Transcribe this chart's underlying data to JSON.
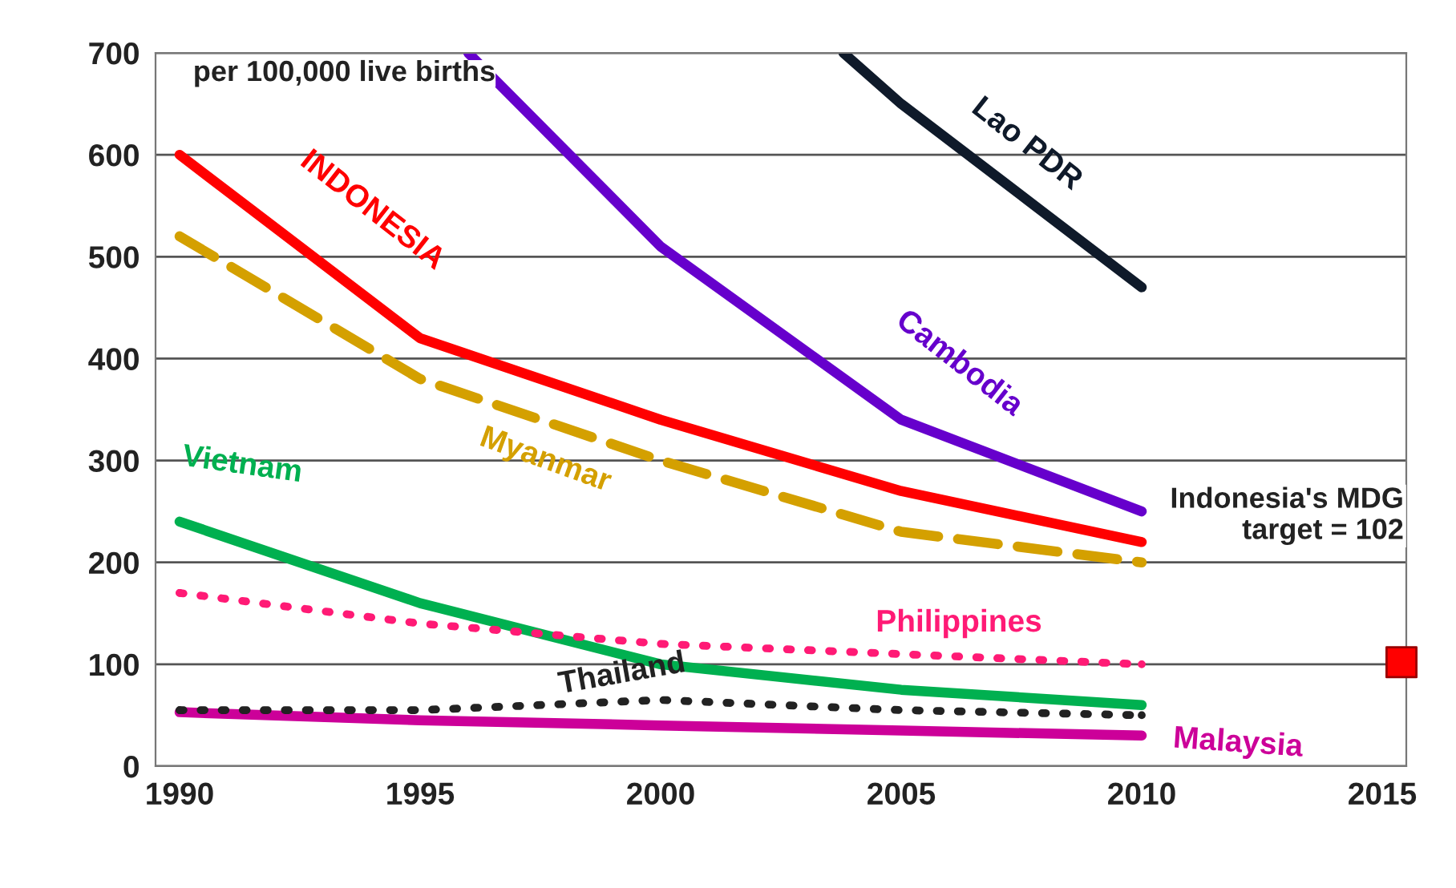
{
  "chart_data": {
    "type": "line",
    "xlim": [
      1989.5,
      2015.5
    ],
    "xticks": [
      1990,
      1995,
      2000,
      2005,
      2010,
      2015
    ],
    "ylim": [
      0,
      700
    ],
    "yticks": [
      0,
      100,
      200,
      300,
      400,
      500,
      600,
      700
    ],
    "grid": "y",
    "legend": false,
    "series": [
      {
        "name": "Lao PDR",
        "color": "#0f1a2a",
        "x": [
          2003.8,
          2005,
          2010
        ],
        "values": [
          700,
          650,
          470
        ],
        "line_style": "solid"
      },
      {
        "name": "Cambodia",
        "color": "#6600cc",
        "x": [
          1996,
          2000,
          2005,
          2010
        ],
        "values": [
          700,
          510,
          340,
          250
        ],
        "line_style": "solid"
      },
      {
        "name": "INDONESIA",
        "color": "#ff0000",
        "x": [
          1990,
          1995,
          2000,
          2005,
          2010
        ],
        "values": [
          600,
          420,
          340,
          270,
          220
        ],
        "line_style": "solid"
      },
      {
        "name": "Myanmar",
        "color": "#d4a000",
        "x": [
          1990,
          1995,
          2000,
          2005,
          2010
        ],
        "values": [
          520,
          380,
          300,
          230,
          200
        ],
        "line_style": "dashed"
      },
      {
        "name": "Vietnam",
        "color": "#00b050",
        "x": [
          1990,
          1995,
          2000,
          2005,
          2010
        ],
        "values": [
          240,
          160,
          100,
          75,
          60
        ],
        "line_style": "solid"
      },
      {
        "name": "Philippines",
        "color": "#ff1a75",
        "x": [
          1990,
          1995,
          2000,
          2005,
          2010
        ],
        "values": [
          170,
          140,
          120,
          110,
          100
        ],
        "line_style": "dotted"
      },
      {
        "name": "Thailand",
        "color": "#222222",
        "x": [
          1990,
          1995,
          2000,
          2005,
          2010
        ],
        "values": [
          55,
          55,
          65,
          55,
          50
        ],
        "line_style": "dotted"
      },
      {
        "name": "Malaysia",
        "color": "#cc0099",
        "x": [
          1990,
          1995,
          2000,
          2005,
          2010
        ],
        "values": [
          53,
          45,
          40,
          35,
          30
        ],
        "line_style": "solid"
      },
      {
        "type": "scatter",
        "marker": "square",
        "color": "#ff0000",
        "x": [
          2015.4
        ],
        "values": [
          102
        ]
      }
    ],
    "annotations": [
      "per 100,000 live births",
      "Indonesia's MDG\ntarget = 102"
    ]
  }
}
